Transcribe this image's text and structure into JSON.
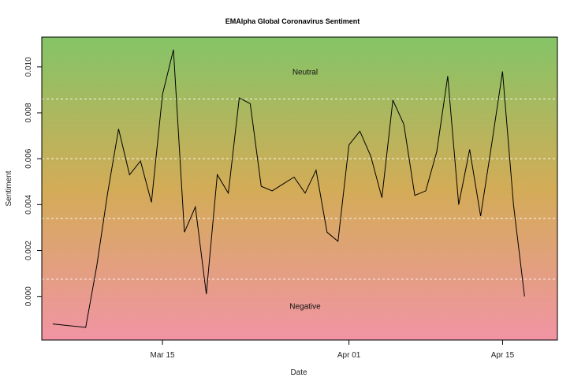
{
  "chart_data": {
    "type": "line",
    "title": "EMAlpha Global Coronavirus Sentiment",
    "xlabel": "Date",
    "ylabel": "Sentiment",
    "x_ticks": [
      "Mar 15",
      "Apr 01",
      "Apr 15"
    ],
    "y_ticks": [
      "0.000",
      "0.002",
      "0.004",
      "0.006",
      "0.008",
      "0.010"
    ],
    "xlim": [
      "2020-03-04",
      "2020-04-20"
    ],
    "ylim": [
      -0.0019,
      0.0113
    ],
    "reference_lines": [
      0.00075,
      0.0034,
      0.006,
      0.0086
    ],
    "reference_line_style": "dashed white",
    "background": {
      "type": "vertical-gradient",
      "top_color": "#84c467",
      "mid_color": "#d3ac57",
      "bottom_color": "#f194a4"
    },
    "annotations": [
      {
        "text": "Neutral",
        "date": "2020-03-28",
        "y": 0.0098
      },
      {
        "text": "Negative",
        "date": "2020-03-28",
        "y": -0.0004
      }
    ],
    "line_color": "#000000",
    "grid": false,
    "series": [
      {
        "x": [
          "2020-03-05",
          "2020-03-08",
          "2020-03-09",
          "2020-03-10",
          "2020-03-11",
          "2020-03-12",
          "2020-03-13",
          "2020-03-14",
          "2020-03-15",
          "2020-03-16",
          "2020-03-17",
          "2020-03-18",
          "2020-03-19",
          "2020-03-20",
          "2020-03-21",
          "2020-03-22",
          "2020-03-23",
          "2020-03-24",
          "2020-03-25",
          "2020-03-26",
          "2020-03-27",
          "2020-03-28",
          "2020-03-29",
          "2020-03-30",
          "2020-03-31",
          "2020-04-01",
          "2020-04-02",
          "2020-04-03",
          "2020-04-04",
          "2020-04-05",
          "2020-04-06",
          "2020-04-07",
          "2020-04-08",
          "2020-04-09",
          "2020-04-10",
          "2020-04-11",
          "2020-04-12",
          "2020-04-13",
          "2020-04-14",
          "2020-04-15",
          "2020-04-16",
          "2020-04-17"
        ],
        "values": [
          -0.0012,
          -0.00135,
          0.0013,
          0.0045,
          0.0073,
          0.0053,
          0.0059,
          0.0041,
          0.0088,
          0.01075,
          0.0028,
          0.0039,
          0.0001,
          0.0053,
          0.0045,
          0.00865,
          0.0084,
          0.0048,
          0.0046,
          0.0049,
          0.0052,
          0.0045,
          0.0055,
          0.0028,
          0.0024,
          0.0066,
          0.0072,
          0.0061,
          0.0043,
          0.00855,
          0.0075,
          0.0044,
          0.0046,
          0.0063,
          0.0096,
          0.004,
          0.0064,
          0.0035,
          0.0066,
          0.0098,
          0.004,
          0.0
        ]
      }
    ]
  }
}
